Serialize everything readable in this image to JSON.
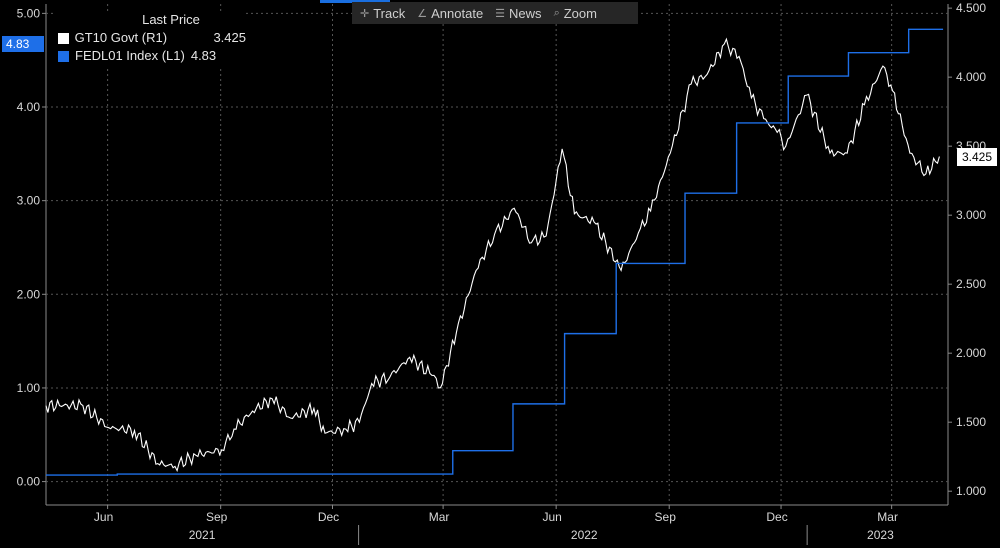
{
  "toolbar": {
    "track_label": "Track",
    "annotate_label": "Annotate",
    "news_label": "News",
    "zoom_label": "Zoom"
  },
  "legend": {
    "title": "Last Price",
    "items": [
      {
        "label": "GT10 Govt  (R1)",
        "value": "3.425",
        "color": "#ffffff"
      },
      {
        "label": "FEDL01 Index  (L1)",
        "value": "4.83",
        "color": "#1e6fe8"
      }
    ]
  },
  "tags": {
    "left": "4.83",
    "right": "3.425"
  },
  "chart_data": {
    "type": "line",
    "left_axis": {
      "ticks": [
        "0.00",
        "1.00",
        "2.00",
        "3.00",
        "4.00",
        "5.00"
      ],
      "ylim": [
        -0.25,
        5.1
      ]
    },
    "right_axis": {
      "ticks": [
        "1.000",
        "1.500",
        "2.000",
        "2.500",
        "3.000",
        "3.500",
        "4.000",
        "4.500"
      ],
      "ylim": [
        0.9,
        4.53
      ]
    },
    "x_axis": {
      "month_ticks": [
        "Jun",
        "Sep",
        "Dec",
        "Mar",
        "Jun",
        "Sep",
        "Dec",
        "Mar"
      ],
      "year_labels": [
        "2021",
        "2022",
        "2023"
      ]
    },
    "series": [
      {
        "name": "GT10 Govt",
        "axis": "right",
        "color": "#ffffff",
        "x": [
          "2021-04-20",
          "2021-05-01",
          "2021-05-20",
          "2021-06-10",
          "2021-07-01",
          "2021-07-20",
          "2021-08-03",
          "2021-08-20",
          "2021-09-10",
          "2021-09-20",
          "2021-10-05",
          "2021-10-21",
          "2021-11-05",
          "2021-11-24",
          "2021-12-03",
          "2021-12-20",
          "2021-12-31",
          "2022-01-10",
          "2022-01-25",
          "2022-02-10",
          "2022-02-28",
          "2022-03-07",
          "2022-03-20",
          "2022-04-05",
          "2022-04-20",
          "2022-05-06",
          "2022-05-20",
          "2022-06-01",
          "2022-06-14",
          "2022-06-24",
          "2022-07-10",
          "2022-08-01",
          "2022-08-15",
          "2022-08-25",
          "2022-09-10",
          "2022-09-27",
          "2022-10-10",
          "2022-10-24",
          "2022-11-05",
          "2022-11-15",
          "2022-11-25",
          "2022-12-06",
          "2022-12-13",
          "2022-12-30",
          "2023-01-18",
          "2023-02-01",
          "2023-02-15",
          "2023-03-02",
          "2023-03-10",
          "2023-03-24",
          "2023-04-06",
          "2023-04-17"
        ],
        "values": [
          1.62,
          1.62,
          1.62,
          1.46,
          1.44,
          1.2,
          1.18,
          1.26,
          1.3,
          1.45,
          1.58,
          1.67,
          1.53,
          1.6,
          1.42,
          1.45,
          1.5,
          1.78,
          1.83,
          1.97,
          1.84,
          1.75,
          2.15,
          2.6,
          2.86,
          3.05,
          2.8,
          2.85,
          3.48,
          3.01,
          2.95,
          2.6,
          2.87,
          3.03,
          3.45,
          3.95,
          4.02,
          4.24,
          4.15,
          3.85,
          3.7,
          3.6,
          3.5,
          3.87,
          3.45,
          3.45,
          3.8,
          4.08,
          3.9,
          3.45,
          3.3,
          3.425
        ]
      },
      {
        "name": "FEDL01 Index",
        "axis": "left",
        "color": "#1e6fe8",
        "step": true,
        "x": [
          "2021-04-20",
          "2021-06-17",
          "2022-03-17",
          "2022-05-05",
          "2022-06-16",
          "2022-07-28",
          "2022-09-22",
          "2022-11-03",
          "2022-12-15",
          "2023-02-02",
          "2023-03-23",
          "2023-04-20"
        ],
        "values": [
          0.07,
          0.08,
          0.33,
          0.83,
          1.58,
          2.33,
          3.08,
          3.83,
          4.33,
          4.58,
          4.83,
          4.83
        ]
      }
    ]
  }
}
